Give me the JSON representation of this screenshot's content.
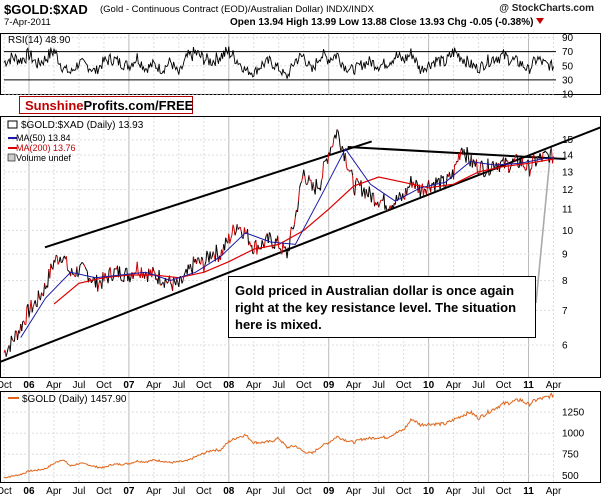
{
  "header": {
    "symbol": "$GOLD:$XAD",
    "description": "(Gold - Continuous Contract (EOD)/Australian Dollar)  INDX/INDX",
    "source": "@ StockCharts.com",
    "date": "7-Apr-2011",
    "ohlc": "Open 13.94  High 13.99  Low 13.88  Close 13.93  Chg -0.05 (-0.38%)"
  },
  "logo": {
    "part1": "Sunshine",
    "part2": "Profits.com/FREE"
  },
  "annotation": "Gold priced in Australian dollar is once again right at the key resistance level. The situation here is mixed.",
  "colors": {
    "price_up": "#000000",
    "price_down": "#cc0000",
    "ma50": "#1a1aa6",
    "ma200": "#dd0000",
    "gold": "#e0651a",
    "trend_line": "#000000"
  },
  "chart_data": [
    {
      "type": "line",
      "panel": "rsi",
      "legend": "RSI(14) 48.90",
      "ylim": [
        10,
        95
      ],
      "yticks": [
        10,
        30,
        50,
        70,
        90
      ],
      "reference_levels": [
        30,
        70
      ],
      "series": [
        {
          "name": "RSI(14)",
          "x": [
            "2005-10",
            "2005-11",
            "2005-12",
            "2006-01",
            "2006-02",
            "2006-03",
            "2006-04",
            "2006-05",
            "2006-06",
            "2006-07",
            "2006-08",
            "2006-09",
            "2006-10",
            "2006-11",
            "2006-12",
            "2007-01",
            "2007-02",
            "2007-03",
            "2007-04",
            "2007-05",
            "2007-06",
            "2007-07",
            "2007-08",
            "2007-09",
            "2007-10",
            "2007-11",
            "2007-12",
            "2008-01",
            "2008-02",
            "2008-03",
            "2008-04",
            "2008-05",
            "2008-06",
            "2008-07",
            "2008-08",
            "2008-09",
            "2008-10",
            "2008-11",
            "2008-12",
            "2009-01",
            "2009-02",
            "2009-03",
            "2009-04",
            "2009-05",
            "2009-06",
            "2009-07",
            "2009-08",
            "2009-09",
            "2009-10",
            "2009-11",
            "2009-12",
            "2010-01",
            "2010-02",
            "2010-03",
            "2010-04",
            "2010-05",
            "2010-06",
            "2010-07",
            "2010-08",
            "2010-09",
            "2010-10",
            "2010-11",
            "2010-12",
            "2011-01",
            "2011-02",
            "2011-03",
            "2011-04"
          ],
          "values": [
            55,
            62,
            58,
            66,
            52,
            60,
            72,
            48,
            40,
            54,
            50,
            42,
            56,
            60,
            54,
            50,
            62,
            46,
            52,
            44,
            56,
            38,
            62,
            68,
            60,
            56,
            64,
            70,
            58,
            44,
            40,
            52,
            56,
            46,
            34,
            58,
            64,
            42,
            66,
            60,
            66,
            48,
            44,
            52,
            56,
            50,
            54,
            64,
            58,
            68,
            44,
            52,
            58,
            54,
            70,
            62,
            52,
            46,
            56,
            62,
            64,
            58,
            54,
            44,
            60,
            52,
            49
          ]
        }
      ]
    },
    {
      "type": "line",
      "panel": "price",
      "legend": [
        "$GOLD:$XAD (Daily) 13.93",
        "MA(50) 13.84",
        "MA(200) 13.76",
        "Volume undef"
      ],
      "log_scale": true,
      "ylim": [
        5.2,
        16.6
      ],
      "yticks": [
        6,
        7,
        8,
        9,
        10,
        11,
        12,
        13,
        14,
        15
      ],
      "series": [
        {
          "name": "$GOLD:$XAD (Daily) 13.93",
          "x": [
            "2005-10",
            "2005-11",
            "2005-12",
            "2006-01",
            "2006-02",
            "2006-03",
            "2006-04",
            "2006-05",
            "2006-06",
            "2006-07",
            "2006-08",
            "2006-09",
            "2006-10",
            "2006-11",
            "2006-12",
            "2007-01",
            "2007-02",
            "2007-03",
            "2007-04",
            "2007-05",
            "2007-06",
            "2007-07",
            "2007-08",
            "2007-09",
            "2007-10",
            "2007-11",
            "2007-12",
            "2008-01",
            "2008-02",
            "2008-03",
            "2008-04",
            "2008-05",
            "2008-06",
            "2008-07",
            "2008-08",
            "2008-09",
            "2008-10",
            "2008-11",
            "2008-12",
            "2009-01",
            "2009-02",
            "2009-03",
            "2009-04",
            "2009-05",
            "2009-06",
            "2009-07",
            "2009-08",
            "2009-09",
            "2009-10",
            "2009-11",
            "2009-12",
            "2010-01",
            "2010-02",
            "2010-03",
            "2010-04",
            "2010-05",
            "2010-06",
            "2010-07",
            "2010-08",
            "2010-09",
            "2010-10",
            "2010-11",
            "2010-12",
            "2011-01",
            "2011-02",
            "2011-03",
            "2011-04"
          ],
          "values": [
            5.8,
            6.1,
            6.5,
            7.0,
            7.3,
            7.8,
            8.7,
            9.0,
            8.2,
            8.4,
            8.3,
            7.9,
            8.0,
            8.3,
            8.3,
            8.2,
            8.5,
            8.3,
            8.2,
            8.1,
            7.9,
            7.8,
            8.2,
            8.7,
            8.6,
            9.1,
            9.0,
            9.6,
            10.3,
            9.9,
            9.3,
            9.4,
            9.6,
            9.4,
            9.0,
            10.6,
            13.0,
            12.0,
            12.4,
            14.2,
            15.6,
            14.0,
            12.2,
            12.1,
            11.7,
            11.5,
            11.3,
            11.4,
            11.6,
            12.5,
            12.0,
            12.3,
            12.4,
            12.3,
            12.9,
            14.6,
            13.6,
            13.3,
            13.2,
            13.6,
            13.4,
            13.5,
            13.6,
            13.2,
            13.7,
            13.9,
            13.93
          ]
        },
        {
          "name": "MA(50) 13.84",
          "x": [
            "2005-12",
            "2006-03",
            "2006-06",
            "2006-09",
            "2006-12",
            "2007-03",
            "2007-06",
            "2007-09",
            "2007-12",
            "2008-03",
            "2008-06",
            "2008-09",
            "2008-12",
            "2009-03",
            "2009-06",
            "2009-09",
            "2009-12",
            "2010-03",
            "2010-06",
            "2010-09",
            "2010-12",
            "2011-03",
            "2011-04"
          ],
          "values": [
            6.2,
            7.4,
            8.3,
            8.1,
            8.2,
            8.3,
            8.0,
            8.3,
            8.9,
            9.9,
            9.5,
            9.4,
            11.6,
            14.4,
            12.3,
            11.4,
            12.1,
            12.4,
            13.6,
            13.4,
            13.5,
            13.8,
            13.84
          ]
        },
        {
          "name": "MA(200) 13.76",
          "x": [
            "2006-04",
            "2006-07",
            "2006-10",
            "2007-01",
            "2007-04",
            "2007-07",
            "2007-10",
            "2008-01",
            "2008-04",
            "2008-07",
            "2008-10",
            "2009-01",
            "2009-04",
            "2009-07",
            "2009-10",
            "2010-01",
            "2010-04",
            "2010-07",
            "2010-10",
            "2011-01",
            "2011-04"
          ],
          "values": [
            7.2,
            7.9,
            8.1,
            8.2,
            8.2,
            8.1,
            8.3,
            8.7,
            9.2,
            9.4,
            10.0,
            11.0,
            12.2,
            12.7,
            12.4,
            12.1,
            12.3,
            13.0,
            13.3,
            13.5,
            13.76
          ]
        }
      ],
      "trend_lines": [
        {
          "from": [
            "2006-04",
            9.4
          ],
          "to": [
            "2009-04",
            14.5
          ]
        },
        {
          "from": [
            "2009-04",
            14.5
          ],
          "to": [
            "2011-04",
            13.8
          ]
        },
        {
          "from": [
            "2005-10",
            5.6
          ],
          "to": [
            "2011-04",
            14.6
          ]
        }
      ],
      "annotation": "Gold priced in Australian dollar is once again right at the key resistance level. The situation here is mixed."
    },
    {
      "type": "line",
      "panel": "gold",
      "legend": "$GOLD (Daily) 1457.90",
      "ylim": [
        420,
        1490
      ],
      "yticks": [
        500,
        750,
        1000,
        1250
      ],
      "series": [
        {
          "name": "$GOLD (Daily) 1457.90",
          "x": [
            "2005-10",
            "2005-11",
            "2005-12",
            "2006-01",
            "2006-02",
            "2006-03",
            "2006-04",
            "2006-05",
            "2006-06",
            "2006-07",
            "2006-08",
            "2006-09",
            "2006-10",
            "2006-11",
            "2006-12",
            "2007-01",
            "2007-02",
            "2007-03",
            "2007-04",
            "2007-05",
            "2007-06",
            "2007-07",
            "2007-08",
            "2007-09",
            "2007-10",
            "2007-11",
            "2007-12",
            "2008-01",
            "2008-02",
            "2008-03",
            "2008-04",
            "2008-05",
            "2008-06",
            "2008-07",
            "2008-08",
            "2008-09",
            "2008-10",
            "2008-11",
            "2008-12",
            "2009-01",
            "2009-02",
            "2009-03",
            "2009-04",
            "2009-05",
            "2009-06",
            "2009-07",
            "2009-08",
            "2009-09",
            "2009-10",
            "2009-11",
            "2009-12",
            "2010-01",
            "2010-02",
            "2010-03",
            "2010-04",
            "2010-05",
            "2010-06",
            "2010-07",
            "2010-08",
            "2010-09",
            "2010-10",
            "2010-11",
            "2010-12",
            "2011-01",
            "2011-02",
            "2011-03",
            "2011-04"
          ],
          "values": [
            470,
            490,
            510,
            550,
            560,
            580,
            640,
            690,
            610,
            640,
            630,
            600,
            590,
            630,
            630,
            640,
            670,
            660,
            680,
            670,
            650,
            660,
            670,
            720,
            760,
            800,
            800,
            900,
            950,
            980,
            890,
            890,
            900,
            940,
            830,
            850,
            780,
            760,
            840,
            890,
            960,
            920,
            890,
            930,
            940,
            950,
            950,
            1000,
            1040,
            1170,
            1100,
            1110,
            1110,
            1110,
            1160,
            1210,
            1250,
            1180,
            1240,
            1300,
            1350,
            1370,
            1400,
            1340,
            1400,
            1420,
            1457.9
          ]
        }
      ]
    }
  ],
  "x_axis": {
    "ticks": [
      {
        "label": "Oct",
        "t": "2005-10",
        "year": false
      },
      {
        "label": "06",
        "t": "2006-01",
        "year": true
      },
      {
        "label": "Apr",
        "t": "2006-04",
        "year": false
      },
      {
        "label": "Jul",
        "t": "2006-07",
        "year": false
      },
      {
        "label": "Oct",
        "t": "2006-10",
        "year": false
      },
      {
        "label": "07",
        "t": "2007-01",
        "year": true
      },
      {
        "label": "Apr",
        "t": "2007-04",
        "year": false
      },
      {
        "label": "Jul",
        "t": "2007-07",
        "year": false
      },
      {
        "label": "Oct",
        "t": "2007-10",
        "year": false
      },
      {
        "label": "08",
        "t": "2008-01",
        "year": true
      },
      {
        "label": "Apr",
        "t": "2008-04",
        "year": false
      },
      {
        "label": "Jul",
        "t": "2008-07",
        "year": false
      },
      {
        "label": "Oct",
        "t": "2008-10",
        "year": false
      },
      {
        "label": "09",
        "t": "2009-01",
        "year": true
      },
      {
        "label": "Apr",
        "t": "2009-04",
        "year": false
      },
      {
        "label": "Jul",
        "t": "2009-07",
        "year": false
      },
      {
        "label": "Oct",
        "t": "2009-10",
        "year": false
      },
      {
        "label": "10",
        "t": "2010-01",
        "year": true
      },
      {
        "label": "Apr",
        "t": "2010-04",
        "year": false
      },
      {
        "label": "Jul",
        "t": "2010-07",
        "year": false
      },
      {
        "label": "Oct",
        "t": "2010-10",
        "year": false
      },
      {
        "label": "11",
        "t": "2011-01",
        "year": true
      },
      {
        "label": "Apr",
        "t": "2011-04",
        "year": false
      }
    ]
  }
}
